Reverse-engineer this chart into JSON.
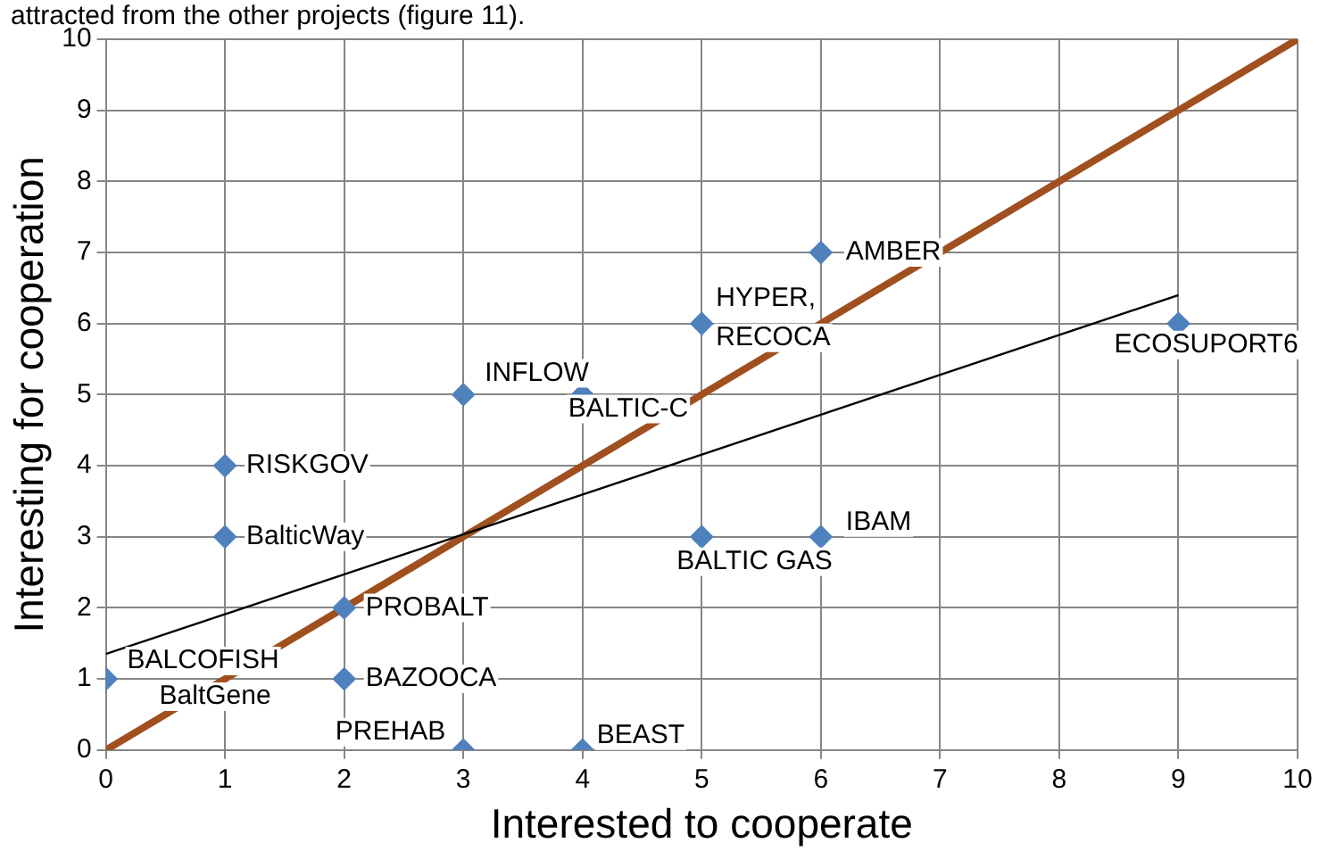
{
  "chart_data": {
    "type": "scatter",
    "xlabel": "Interested to cooperate",
    "ylabel": "Interesting for cooperation",
    "annotations": [
      "attracted from the other projects (figure 11)."
    ],
    "xlim": [
      0,
      10
    ],
    "ylim": [
      0,
      10
    ],
    "xticks": [
      0,
      1,
      2,
      3,
      4,
      5,
      6,
      7,
      8,
      9,
      10
    ],
    "yticks": [
      0,
      1,
      2,
      3,
      4,
      5,
      6,
      7,
      8,
      9,
      10
    ],
    "grid": true,
    "legend": false,
    "marker": "diamond",
    "series": [
      {
        "type": "scatter",
        "color": "#4f81bd",
        "x": [
          0,
          0,
          1,
          1,
          2,
          2,
          3,
          4,
          3,
          4,
          5,
          6,
          5,
          6,
          9
        ],
        "values": [
          1,
          1,
          4,
          3,
          2,
          1,
          5,
          5,
          0,
          0,
          6,
          7,
          3,
          3,
          6
        ],
        "value_labels": [
          "BALCOFISH",
          "BaltGene",
          "RISKGOV",
          "BalticWay",
          "PROBALT",
          "BAZOOCA",
          "INFLOW",
          "BALTIC-C",
          "PREHAB",
          "BEAST",
          "HYPER,\nRECOCA",
          "AMBER",
          "BALTIC GAS",
          "IBAM",
          "ECOSUPORT6"
        ]
      },
      {
        "type": "line",
        "color": "#000000",
        "x": [
          0,
          9
        ],
        "values": [
          1.35,
          6.4
        ],
        "marker": "none"
      },
      {
        "type": "line",
        "color": "#a0501e",
        "x": [
          0,
          10
        ],
        "values": [
          0,
          10
        ],
        "marker": "none"
      }
    ]
  }
}
